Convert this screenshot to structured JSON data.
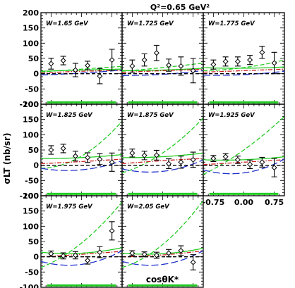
{
  "figure": {
    "title": "Q²=0.65 GeV²",
    "ylabel": "σLT (nb/sr)",
    "xlabel": "cosθK*"
  },
  "chart_data": {
    "type": "scatter",
    "xlim": [
      -1,
      1
    ],
    "ylim": [
      -100,
      200
    ],
    "x_ticks": [
      "-0.75",
      "0.00",
      "0.75"
    ],
    "y_ticks": [
      "-100",
      "-50",
      "0",
      "50",
      "100",
      "150",
      "200"
    ],
    "panels": [
      {
        "label": "W=1.65 GeV",
        "points": [
          {
            "x": -0.75,
            "y": 33,
            "err": 18
          },
          {
            "x": -0.45,
            "y": 43,
            "err": 14
          },
          {
            "x": -0.15,
            "y": 12,
            "err": 22
          },
          {
            "x": 0.15,
            "y": 27,
            "err": 14
          },
          {
            "x": 0.45,
            "y": -8,
            "err": 25
          },
          {
            "x": 0.75,
            "y": 45,
            "err": 35
          }
        ],
        "curves": [
          {
            "style": "green-solid",
            "x": [
              -1,
              0,
              1
            ],
            "y": [
              8,
              12,
              15
            ]
          },
          {
            "style": "green-dash",
            "x": [
              -1,
              0,
              1
            ],
            "y": [
              6,
              15,
              24
            ]
          },
          {
            "style": "red-dashdot",
            "x": [
              -1,
              0,
              1
            ],
            "y": [
              2,
              8,
              10
            ]
          },
          {
            "style": "blue-longdash",
            "x": [
              -1,
              0,
              1
            ],
            "y": [
              -4,
              2,
              12
            ]
          },
          {
            "style": "black-dash",
            "x": [
              -1,
              0,
              1
            ],
            "y": [
              0,
              0,
              0
            ]
          }
        ]
      },
      {
        "label": "W=1.725 GeV",
        "points": [
          {
            "x": -0.75,
            "y": 25,
            "err": 20
          },
          {
            "x": -0.45,
            "y": 45,
            "err": 20
          },
          {
            "x": -0.15,
            "y": 68,
            "err": 25
          },
          {
            "x": 0.15,
            "y": 28,
            "err": 20
          },
          {
            "x": 0.45,
            "y": 25,
            "err": 30
          },
          {
            "x": 0.75,
            "y": 10,
            "err": 40
          }
        ],
        "curves": [
          {
            "style": "green-solid",
            "x": [
              -1,
              0,
              1
            ],
            "y": [
              10,
              12,
              18
            ]
          },
          {
            "style": "green-dash",
            "x": [
              -1,
              0,
              1
            ],
            "y": [
              8,
              20,
              35
            ]
          },
          {
            "style": "red-dashdot",
            "x": [
              -1,
              0,
              1
            ],
            "y": [
              4,
              10,
              14
            ]
          },
          {
            "style": "blue-longdash",
            "x": [
              -1,
              0,
              1
            ],
            "y": [
              -6,
              -2,
              10
            ]
          },
          {
            "style": "black-dash",
            "x": [
              -1,
              0,
              1
            ],
            "y": [
              0,
              0,
              0
            ]
          }
        ]
      },
      {
        "label": "W=1.775 GeV",
        "points": [
          {
            "x": -0.75,
            "y": 30,
            "err": 15
          },
          {
            "x": -0.45,
            "y": 40,
            "err": 15
          },
          {
            "x": -0.15,
            "y": 40,
            "err": 15
          },
          {
            "x": 0.15,
            "y": 45,
            "err": 15
          },
          {
            "x": 0.45,
            "y": 70,
            "err": 20
          },
          {
            "x": 0.75,
            "y": 35,
            "err": 35
          }
        ],
        "curves": [
          {
            "style": "green-solid",
            "x": [
              -1,
              0,
              1
            ],
            "y": [
              20,
              18,
              22
            ]
          },
          {
            "style": "green-dash",
            "x": [
              -1,
              0,
              1
            ],
            "y": [
              10,
              20,
              45
            ]
          },
          {
            "style": "red-dashdot",
            "x": [
              -1,
              0,
              1
            ],
            "y": [
              5,
              10,
              15
            ]
          },
          {
            "style": "blue-longdash",
            "x": [
              -1,
              0,
              1
            ],
            "y": [
              -5,
              -3,
              8
            ]
          },
          {
            "style": "black-dash",
            "x": [
              -1,
              0,
              1
            ],
            "y": [
              0,
              0,
              0
            ]
          }
        ]
      },
      {
        "label": "W=1.825 GeV",
        "points": [
          {
            "x": -0.75,
            "y": 50,
            "err": 14
          },
          {
            "x": -0.45,
            "y": 55,
            "err": 14
          },
          {
            "x": -0.15,
            "y": 30,
            "err": 16
          },
          {
            "x": 0.15,
            "y": 25,
            "err": 16
          },
          {
            "x": 0.45,
            "y": 20,
            "err": 18
          },
          {
            "x": 0.75,
            "y": 10,
            "err": 30
          }
        ],
        "curves": [
          {
            "style": "green-solid",
            "x": [
              -1,
              0,
              1
            ],
            "y": [
              22,
              25,
              35
            ]
          },
          {
            "style": "green-dash",
            "x": [
              -1,
              0,
              1
            ],
            "y": [
              -10,
              30,
              145
            ]
          },
          {
            "style": "red-dashdot",
            "x": [
              -1,
              0,
              1
            ],
            "y": [
              5,
              12,
              20
            ]
          },
          {
            "style": "blue-longdash",
            "x": [
              -1,
              0,
              1
            ],
            "y": [
              -10,
              -15,
              15
            ]
          },
          {
            "style": "black-dash",
            "x": [
              -1,
              0,
              1
            ],
            "y": [
              0,
              0,
              0
            ]
          }
        ]
      },
      {
        "label": "W=1.875 GeV",
        "points": [
          {
            "x": -0.75,
            "y": 40,
            "err": 13
          },
          {
            "x": -0.45,
            "y": 32,
            "err": 14
          },
          {
            "x": -0.15,
            "y": 33,
            "err": 16
          },
          {
            "x": 0.15,
            "y": 5,
            "err": 16
          },
          {
            "x": 0.45,
            "y": 10,
            "err": 20
          },
          {
            "x": 0.75,
            "y": 18,
            "err": 25
          }
        ],
        "curves": [
          {
            "style": "green-solid",
            "x": [
              -1,
              0,
              1
            ],
            "y": [
              25,
              28,
              40
            ]
          },
          {
            "style": "green-dash",
            "x": [
              -1,
              0,
              1
            ],
            "y": [
              -25,
              40,
              155
            ]
          },
          {
            "style": "red-dashdot",
            "x": [
              -1,
              0,
              1
            ],
            "y": [
              5,
              15,
              22
            ]
          },
          {
            "style": "blue-longdash",
            "x": [
              -1,
              0,
              1
            ],
            "y": [
              -12,
              -20,
              18
            ]
          },
          {
            "style": "black-dash",
            "x": [
              -1,
              0,
              1
            ],
            "y": [
              0,
              0,
              0
            ]
          }
        ]
      },
      {
        "label": "W=1.925 GeV",
        "points": [
          {
            "x": -0.75,
            "y": 22,
            "err": 10
          },
          {
            "x": -0.45,
            "y": 28,
            "err": 10
          },
          {
            "x": -0.15,
            "y": 18,
            "err": 12
          },
          {
            "x": 0.15,
            "y": 3,
            "err": 14
          },
          {
            "x": 0.45,
            "y": 10,
            "err": 16
          },
          {
            "x": 0.75,
            "y": -8,
            "err": 30
          }
        ],
        "curves": [
          {
            "style": "green-solid",
            "x": [
              -1,
              0,
              1
            ],
            "y": [
              18,
              18,
              28
            ]
          },
          {
            "style": "green-dash",
            "x": [
              -1,
              0,
              1
            ],
            "y": [
              -30,
              50,
              160
            ]
          },
          {
            "style": "red-dashdot",
            "x": [
              -1,
              0,
              1
            ],
            "y": [
              2,
              10,
              18
            ]
          },
          {
            "style": "blue-longdash",
            "x": [
              -1,
              0,
              1
            ],
            "y": [
              -15,
              -25,
              20
            ]
          },
          {
            "style": "black-dash",
            "x": [
              -1,
              0,
              1
            ],
            "y": [
              0,
              0,
              0
            ]
          }
        ]
      },
      {
        "label": "W=1.975 GeV",
        "points": [
          {
            "x": -0.75,
            "y": 10,
            "err": 9
          },
          {
            "x": -0.45,
            "y": 3,
            "err": 10
          },
          {
            "x": -0.15,
            "y": 5,
            "err": 12
          },
          {
            "x": 0.15,
            "y": -12,
            "err": 12
          },
          {
            "x": 0.45,
            "y": 15,
            "err": 18
          },
          {
            "x": 0.75,
            "y": 85,
            "err": 30
          }
        ],
        "curves": [
          {
            "style": "green-solid",
            "x": [
              -1,
              0,
              1
            ],
            "y": [
              15,
              12,
              30
            ]
          },
          {
            "style": "green-dash",
            "x": [
              -1,
              0,
              1
            ],
            "y": [
              -35,
              45,
              180
            ]
          },
          {
            "style": "red-dashdot",
            "x": [
              -1,
              0,
              1
            ],
            "y": [
              0,
              8,
              18
            ]
          },
          {
            "style": "blue-longdash",
            "x": [
              -1,
              0,
              1
            ],
            "y": [
              -15,
              -25,
              20
            ]
          },
          {
            "style": "black-dash",
            "x": [
              -1,
              0,
              1
            ],
            "y": [
              0,
              0,
              0
            ]
          }
        ]
      },
      {
        "label": "W=2.05 GeV",
        "points": [
          {
            "x": -0.75,
            "y": 12,
            "err": 8
          },
          {
            "x": -0.45,
            "y": 8,
            "err": 8
          },
          {
            "x": -0.15,
            "y": 5,
            "err": 10
          },
          {
            "x": 0.15,
            "y": 12,
            "err": 12
          },
          {
            "x": 0.45,
            "y": 20,
            "err": 16
          },
          {
            "x": 0.75,
            "y": -18,
            "err": 25
          }
        ],
        "curves": [
          {
            "style": "green-solid",
            "x": [
              -1,
              0,
              1
            ],
            "y": [
              12,
              10,
              28
            ]
          },
          {
            "style": "green-dash",
            "x": [
              -1,
              0,
              1
            ],
            "y": [
              -35,
              40,
              185
            ]
          },
          {
            "style": "red-dashdot",
            "x": [
              -1,
              0,
              1
            ],
            "y": [
              0,
              6,
              20
            ]
          },
          {
            "style": "blue-longdash",
            "x": [
              -1,
              0,
              1
            ],
            "y": [
              -15,
              -25,
              20
            ]
          },
          {
            "style": "black-dash",
            "x": [
              -1,
              0,
              1
            ],
            "y": [
              0,
              0,
              0
            ]
          }
        ]
      }
    ]
  }
}
